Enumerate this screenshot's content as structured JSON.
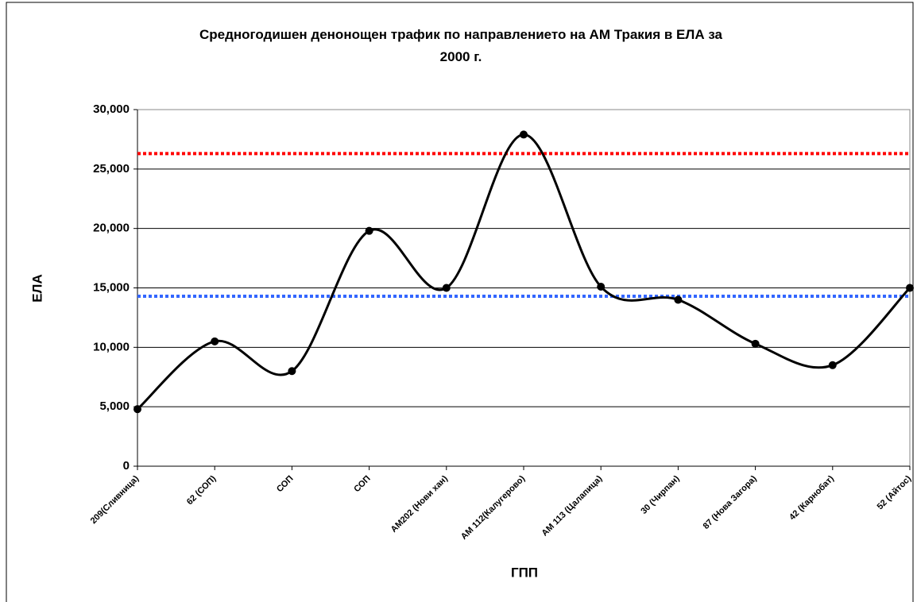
{
  "chart_data": {
    "type": "line",
    "title": "Средногодишен денонощен трафик по направлението на АМ Тракия в ЕЛА за 2000 г.",
    "xlabel": "ГПП",
    "ylabel": "ЕЛА",
    "categories": [
      "209(Сливница)",
      "62 (СОП)",
      "СОП",
      "СОП",
      "АМ202 (Нови хан)",
      "АМ 112(Калугерово)",
      "АМ 113 (Цалапица)",
      "30 (Чирпан)",
      "87 (Нова Загора)",
      "42 (Карнобат)",
      "52 (Айтос)"
    ],
    "series": [
      {
        "color": "#000000",
        "values": [
          4800,
          10500,
          8000,
          19800,
          15000,
          27900,
          15100,
          14000,
          10300,
          8500,
          15000
        ]
      }
    ],
    "reference_lines": [
      {
        "value": 26300,
        "color": "#ff0000"
      },
      {
        "value": 14300,
        "color": "#3366ff"
      }
    ],
    "ylim": [
      0,
      30000
    ],
    "yticks": [
      0,
      {
        "value": 5000,
        "label": "5,000"
      },
      {
        "value": 10000,
        "label": "10,000"
      },
      {
        "value": 15000,
        "label": "15,000"
      },
      {
        "value": 20000,
        "label": "20,000"
      },
      {
        "value": 25000,
        "label": "25,000"
      },
      {
        "value": 30000,
        "label": "30,000"
      }
    ],
    "grid": true,
    "smooth": true
  }
}
